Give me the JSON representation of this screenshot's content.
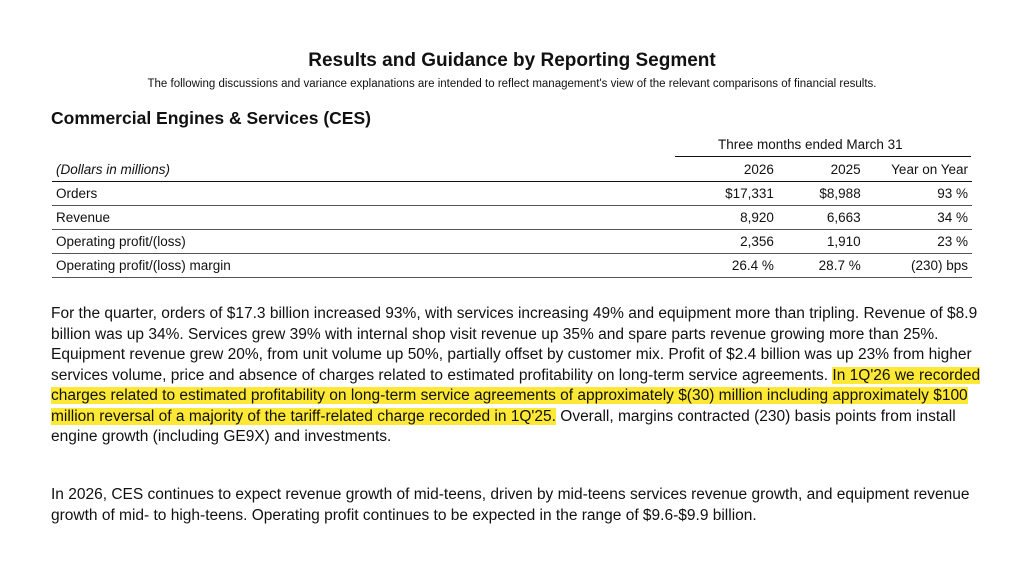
{
  "header": {
    "title": "Results and Guidance by Reporting Segment",
    "subtitle": "The following discussions and variance explanations are intended to reflect management's view of the relevant comparisons of financial results."
  },
  "segment": {
    "title": "Commercial Engines & Services (CES)"
  },
  "table": {
    "period_header": "Three months ended March 31",
    "units_label": "(Dollars in millions)",
    "columns": [
      "2026",
      "2025",
      "Year on Year"
    ],
    "rows": [
      {
        "label": "Orders",
        "v2026": "$17,331",
        "v2025": "$8,988",
        "yoy": "93 %"
      },
      {
        "label": "Revenue",
        "v2026": "8,920",
        "v2025": "6,663",
        "yoy": "34 %"
      },
      {
        "label": "Operating profit/(loss)",
        "v2026": "2,356",
        "v2025": "1,910",
        "yoy": "23 %"
      },
      {
        "label": "Operating profit/(loss) margin",
        "v2026": "26.4 %",
        "v2025": "28.7 %",
        "yoy": "(230) bps"
      }
    ]
  },
  "paragraphs": {
    "p1_before": "For the quarter, orders of $17.3 billion increased 93%, with services increasing 49% and equipment more than tripling. Revenue of $8.9 billion was up 34%. Services grew 39% with internal shop visit revenue up 35% and spare parts revenue growing more than 25%. Equipment revenue grew 20%, from unit volume up 50%, partially offset by customer mix. Profit of $2.4 billion was up 23% from higher services volume, price and absence of charges related to estimated profitability on long-term service agreements. ",
    "p1_highlight": "In 1Q'26 we recorded charges related to estimated profitability on long-term service agreements of approximately $(30) million including approximately $100 million reversal of a majority of the tariff-related charge recorded in 1Q'25.",
    "p1_after": " Overall, margins contracted (230) basis points from install engine growth (including GE9X) and investments.",
    "p2": "In 2026, CES continues to expect revenue growth of mid-teens, driven by mid-teens services revenue growth, and equipment revenue growth of mid- to high-teens. Operating profit continues to be expected in the range of $9.6-$9.9 billion."
  },
  "colors": {
    "highlight": "#fde835",
    "text": "#111111"
  }
}
